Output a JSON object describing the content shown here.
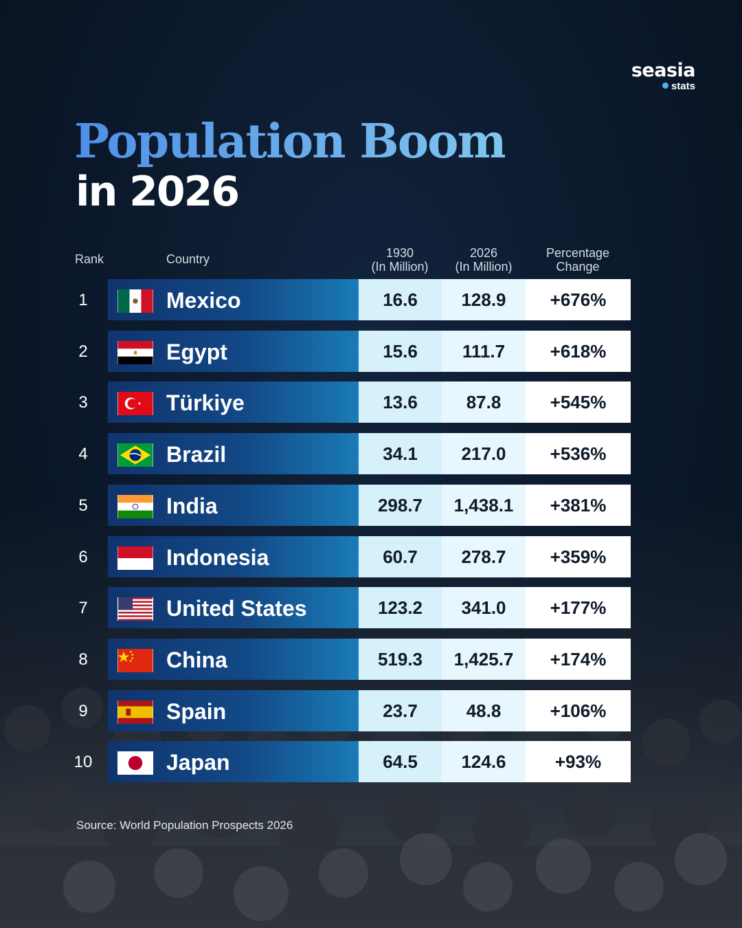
{
  "brand": {
    "name": "seasia",
    "sub": "stats"
  },
  "title": "Population Boom",
  "subtitle": "in 2026",
  "colors": {
    "bar_start": "#10346e",
    "bar_end": "#1a7bb6",
    "title_start": "#4f8fe8",
    "title_end": "#7fc6ee",
    "background": "#0c1a2e"
  },
  "chart_data": {
    "type": "table",
    "title": "Population Boom in 2026",
    "columns": {
      "rank": "Rank",
      "country": "Country",
      "pop1930": [
        "1930",
        "(In Million)"
      ],
      "pop2026": [
        "2026",
        "(In Million)"
      ],
      "change": [
        "Percentage",
        "Change"
      ]
    },
    "rows": [
      {
        "rank": "1",
        "country": "Mexico",
        "flag": "mexico-flag",
        "pop1930": "16.6",
        "pop2026": "128.9",
        "change": "+676%"
      },
      {
        "rank": "2",
        "country": "Egypt",
        "flag": "egypt-flag",
        "pop1930": "15.6",
        "pop2026": "111.7",
        "change": "+618%"
      },
      {
        "rank": "3",
        "country": "Türkiye",
        "flag": "turkiye-flag",
        "pop1930": "13.6",
        "pop2026": "87.8",
        "change": "+545%"
      },
      {
        "rank": "4",
        "country": "Brazil",
        "flag": "brazil-flag",
        "pop1930": "34.1",
        "pop2026": "217.0",
        "change": "+536%"
      },
      {
        "rank": "5",
        "country": "India",
        "flag": "india-flag",
        "pop1930": "298.7",
        "pop2026": "1,438.1",
        "change": "+381%"
      },
      {
        "rank": "6",
        "country": "Indonesia",
        "flag": "indonesia-flag",
        "pop1930": "60.7",
        "pop2026": "278.7",
        "change": "+359%"
      },
      {
        "rank": "7",
        "country": "United States",
        "flag": "united-states-flag",
        "pop1930": "123.2",
        "pop2026": "341.0",
        "change": "+177%"
      },
      {
        "rank": "8",
        "country": "China",
        "flag": "china-flag",
        "pop1930": "519.3",
        "pop2026": "1,425.7",
        "change": "+174%"
      },
      {
        "rank": "9",
        "country": "Spain",
        "flag": "spain-flag",
        "pop1930": "23.7",
        "pop2026": "48.8",
        "change": "+106%"
      },
      {
        "rank": "10",
        "country": "Japan",
        "flag": "japan-flag",
        "pop1930": "64.5",
        "pop2026": "124.6",
        "change": "+93%"
      }
    ]
  },
  "source": "Source: World Population Prospects 2026"
}
